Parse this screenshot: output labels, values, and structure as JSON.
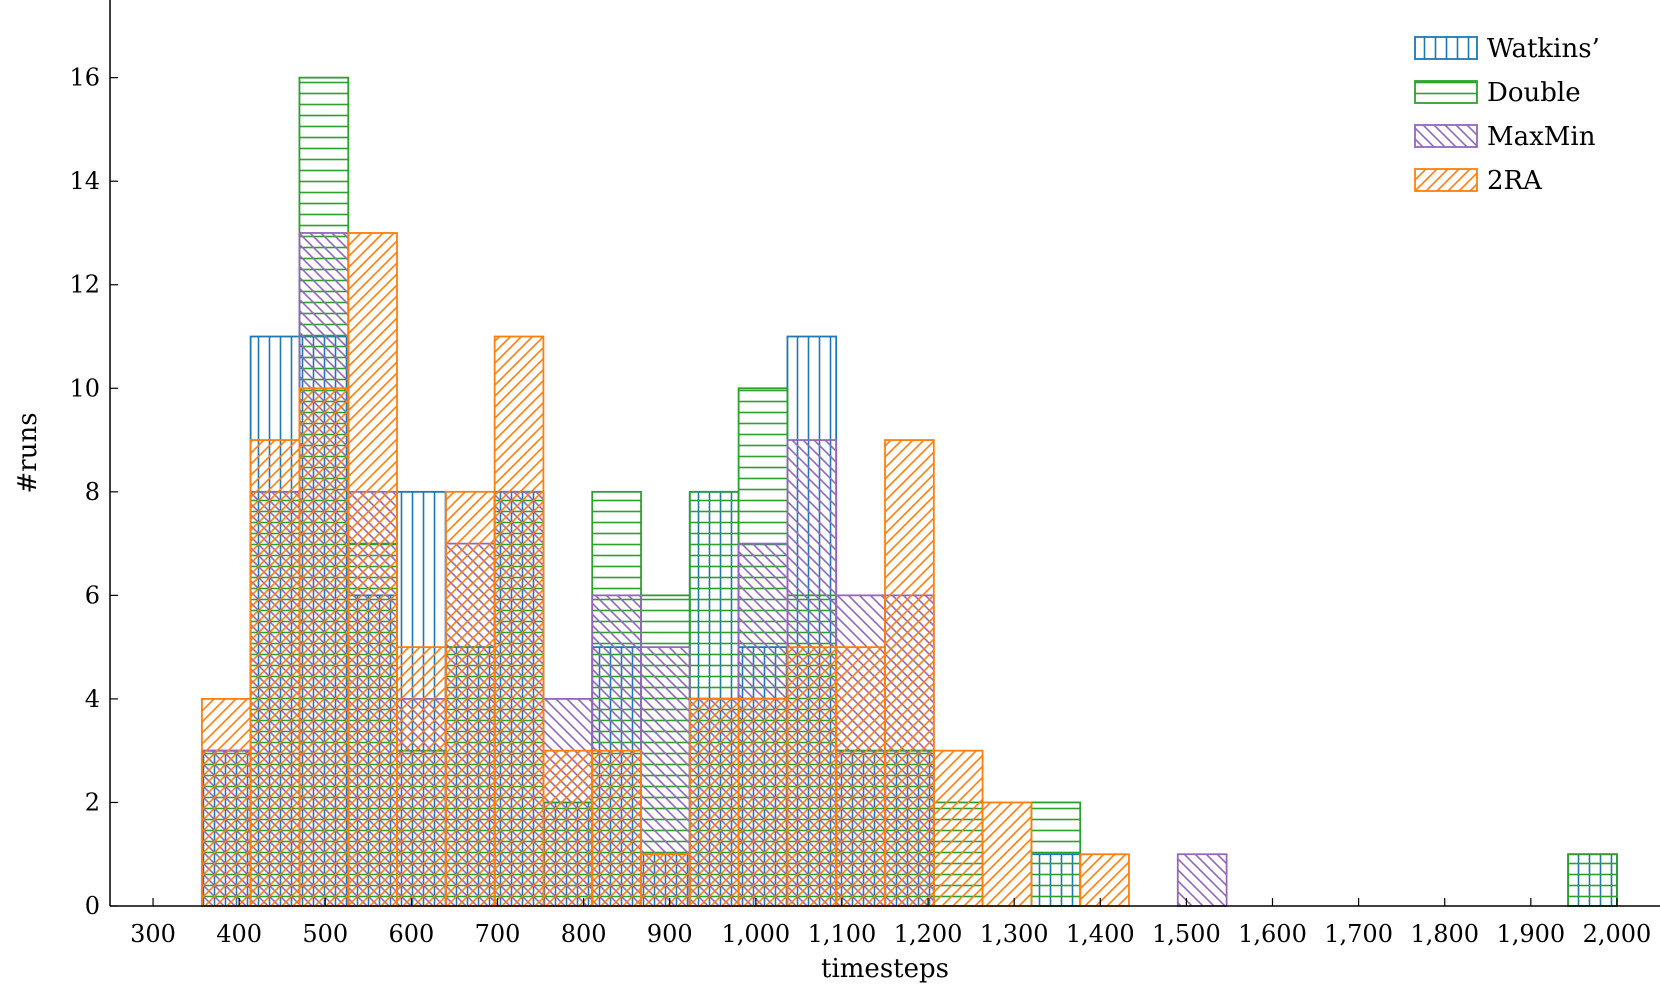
{
  "chart_data": {
    "type": "bar",
    "subtype": "overlapping-histogram",
    "xlabel": "timesteps",
    "ylabel": "#runs",
    "xlim": [
      250,
      2050
    ],
    "ylim": [
      0,
      17.5
    ],
    "x_ticks": [
      300,
      400,
      500,
      600,
      700,
      800,
      900,
      1000,
      1100,
      1200,
      1300,
      1400,
      1500,
      1600,
      1700,
      1800,
      1900,
      2000
    ],
    "x_tick_labels": [
      "300",
      "400",
      "500",
      "600",
      "700",
      "800",
      "900",
      "1,000",
      "1,100",
      "1,200",
      "1,300",
      "1,400",
      "1,500",
      "1,600",
      "1,700",
      "1,800",
      "1,900",
      "2,000"
    ],
    "y_ticks": [
      0,
      2,
      4,
      6,
      8,
      10,
      12,
      14,
      16
    ],
    "y_tick_labels": [
      "0",
      "2",
      "4",
      "6",
      "8",
      "10",
      "12",
      "14",
      "16"
    ],
    "legend_position": "top-right",
    "grid": false,
    "bin_edges": [
      300,
      356.7,
      413.3,
      470,
      526.7,
      583.3,
      640,
      696.7,
      753.3,
      810,
      866.7,
      923.3,
      980,
      1036.7,
      1093.3,
      1150,
      1206.7,
      1263.3,
      1320,
      1376.7,
      1433.3,
      1490,
      1546.7,
      1603.3,
      1660,
      1716.7,
      1773.3,
      1830,
      1886.7,
      1943.3,
      2000
    ],
    "series": [
      {
        "name": "Watkins’",
        "color": "#1f77b4",
        "hatch": "vertical",
        "values": [
          0,
          3,
          11,
          11,
          6,
          8,
          5,
          8,
          2,
          5,
          1,
          8,
          5,
          11,
          3,
          3,
          0,
          0,
          1,
          0,
          0,
          0,
          0,
          0,
          0,
          0,
          0,
          0,
          0,
          1
        ]
      },
      {
        "name": "Double",
        "color": "#2ca02c",
        "hatch": "horizontal",
        "values": [
          0,
          3,
          8,
          16,
          7,
          3,
          5,
          8,
          2,
          8,
          6,
          8,
          10,
          6,
          3,
          3,
          2,
          0,
          2,
          0,
          0,
          0,
          0,
          0,
          0,
          0,
          0,
          0,
          0,
          1
        ]
      },
      {
        "name": "MaxMin",
        "color": "#9467bd",
        "hatch": "diagonal-down",
        "values": [
          0,
          3,
          8,
          13,
          8,
          4,
          7,
          8,
          4,
          6,
          5,
          4,
          7,
          9,
          6,
          6,
          0,
          0,
          0,
          0,
          0,
          1,
          0,
          0,
          0,
          0,
          0,
          0,
          0,
          0
        ]
      },
      {
        "name": "2RA",
        "color": "#ff7f0e",
        "hatch": "diagonal-up",
        "values": [
          0,
          4,
          9,
          10,
          13,
          5,
          8,
          11,
          3,
          3,
          1,
          4,
          4,
          5,
          5,
          9,
          3,
          2,
          0,
          1,
          0,
          0,
          0,
          0,
          0,
          0,
          0,
          0,
          0,
          0
        ]
      }
    ]
  }
}
